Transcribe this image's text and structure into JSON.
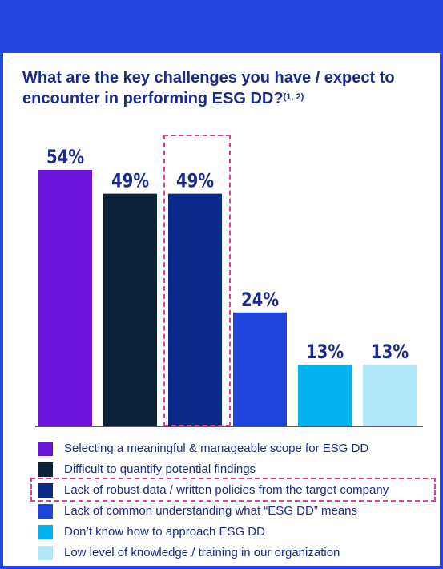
{
  "chart_data": {
    "type": "bar",
    "title": "What are the key challenges you have / expect to encounter in performing ESG DD?",
    "title_superscript": "(1, 2)",
    "categories": [
      "Selecting a meaningful & manageable scope for ESG DD",
      "Difficult to quantify potential findings",
      "Lack of robust data / written policies from the target company",
      "Lack of common understanding what “ESG DD” means",
      "Don’t know how to approach ESG DD",
      "Low level of knowledge / training in our organization"
    ],
    "values": [
      54,
      49,
      49,
      24,
      13,
      13
    ],
    "data_labels": [
      "54%",
      "49%",
      "49%",
      "24%",
      "13%",
      "13%"
    ],
    "colors": [
      "#6a14d9",
      "#0d2239",
      "#0a2a8a",
      "#1f44dc",
      "#00b3ef",
      "#b0e8f9"
    ],
    "label_color": "#1a2a8c",
    "ylim": [
      0,
      54
    ],
    "grid": false,
    "legend_position": "bottom",
    "highlighted_index": 2,
    "highlight_color": "#e0408f"
  }
}
